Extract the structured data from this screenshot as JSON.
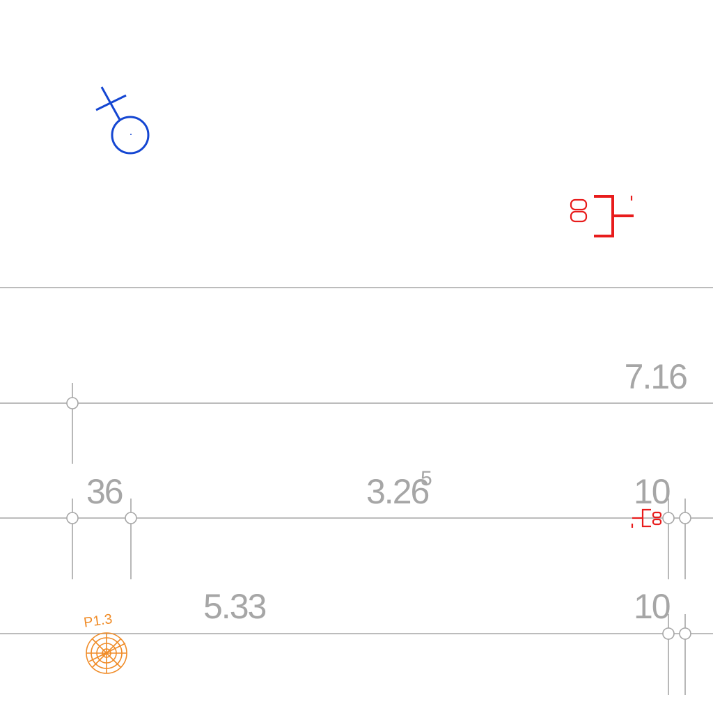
{
  "drawing": {
    "dimensions": {
      "d1": "7.16",
      "d2": "36",
      "d3_main": "3.26",
      "d3_sup": "5",
      "d4": "10",
      "d5": "5.33",
      "d6": "10"
    },
    "tags": {
      "pile": "P1.3"
    },
    "colors": {
      "grid": "#a6a6a6",
      "blue_symbol": "#1446d2",
      "red_symbol": "#e81c1c",
      "orange_symbol": "#f08c28",
      "background": "#ffffff"
    },
    "icons": {
      "blue_symbol": "venus-like-fixture-icon",
      "red_symbol_top": "electrical-outlet-icon",
      "red_symbol_small": "electrical-outlet-icon",
      "orange_symbol": "pile-foundation-icon"
    }
  }
}
